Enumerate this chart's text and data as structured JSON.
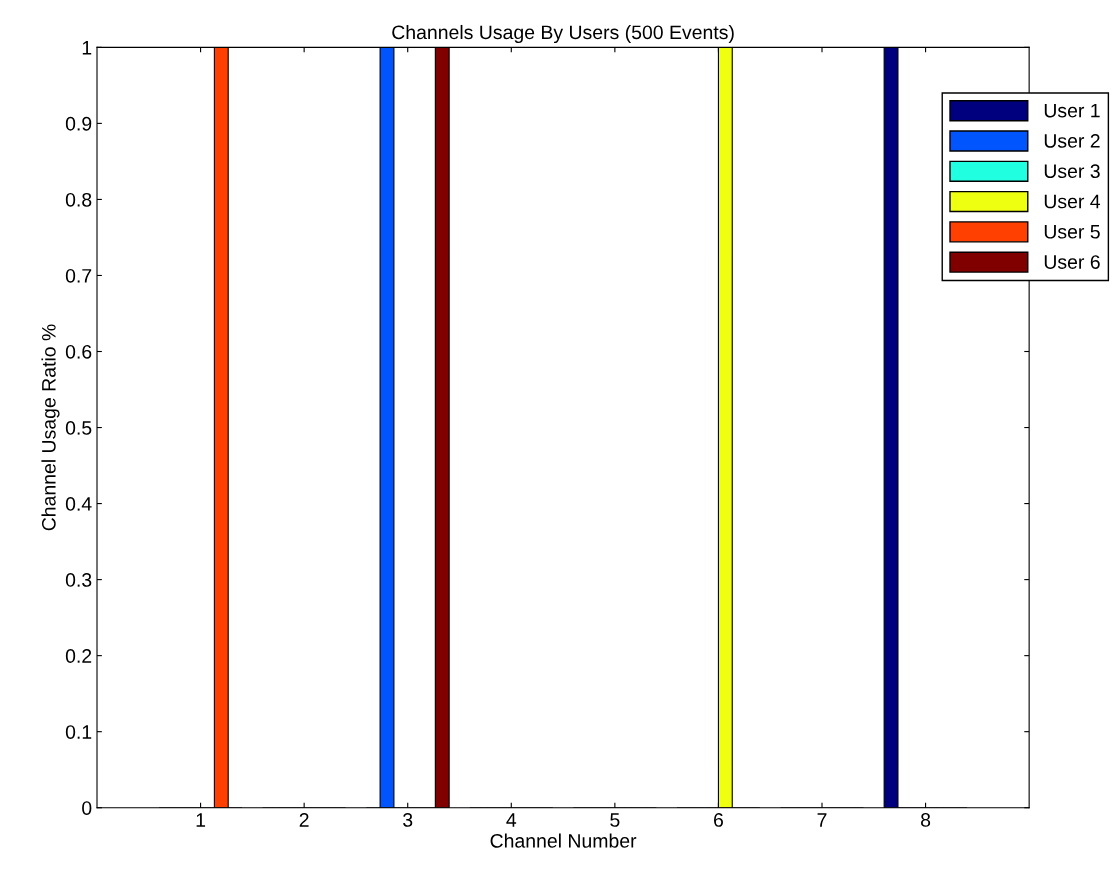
{
  "chart_data": {
    "type": "bar",
    "title": "Channels Usage By Users (500 Events)",
    "xlabel": "Channel Number",
    "ylabel": "Channel Usage Ratio %",
    "x": [
      1,
      2,
      3,
      4,
      5,
      6,
      7,
      8
    ],
    "xlim": [
      0,
      9
    ],
    "xticks": [
      1,
      2,
      3,
      4,
      5,
      6,
      7,
      8
    ],
    "ylim": [
      0,
      1
    ],
    "yticks": [
      0,
      0.1,
      0.2,
      0.3,
      0.4,
      0.5,
      0.6,
      0.7,
      0.8,
      0.9,
      1
    ],
    "grid": false,
    "legend": "top right",
    "series": [
      {
        "name": "User 1",
        "color": "#00007f",
        "values": [
          0,
          0,
          0,
          0,
          0,
          0,
          0,
          1
        ]
      },
      {
        "name": "User 2",
        "color": "#0055ff",
        "values": [
          0,
          0,
          1,
          0,
          0,
          0,
          0,
          0
        ]
      },
      {
        "name": "User 3",
        "color": "#20ffdf",
        "values": [
          0,
          0,
          0,
          0,
          0,
          0,
          0,
          0
        ]
      },
      {
        "name": "User 4",
        "color": "#efff10",
        "values": [
          0,
          0,
          0,
          0,
          0,
          1,
          0,
          0
        ]
      },
      {
        "name": "User 5",
        "color": "#ff4000",
        "values": [
          1,
          0,
          0,
          0,
          0,
          0,
          0,
          0
        ]
      },
      {
        "name": "User 6",
        "color": "#800000",
        "values": [
          0,
          0,
          1,
          0,
          0,
          0,
          0,
          0
        ]
      }
    ]
  }
}
